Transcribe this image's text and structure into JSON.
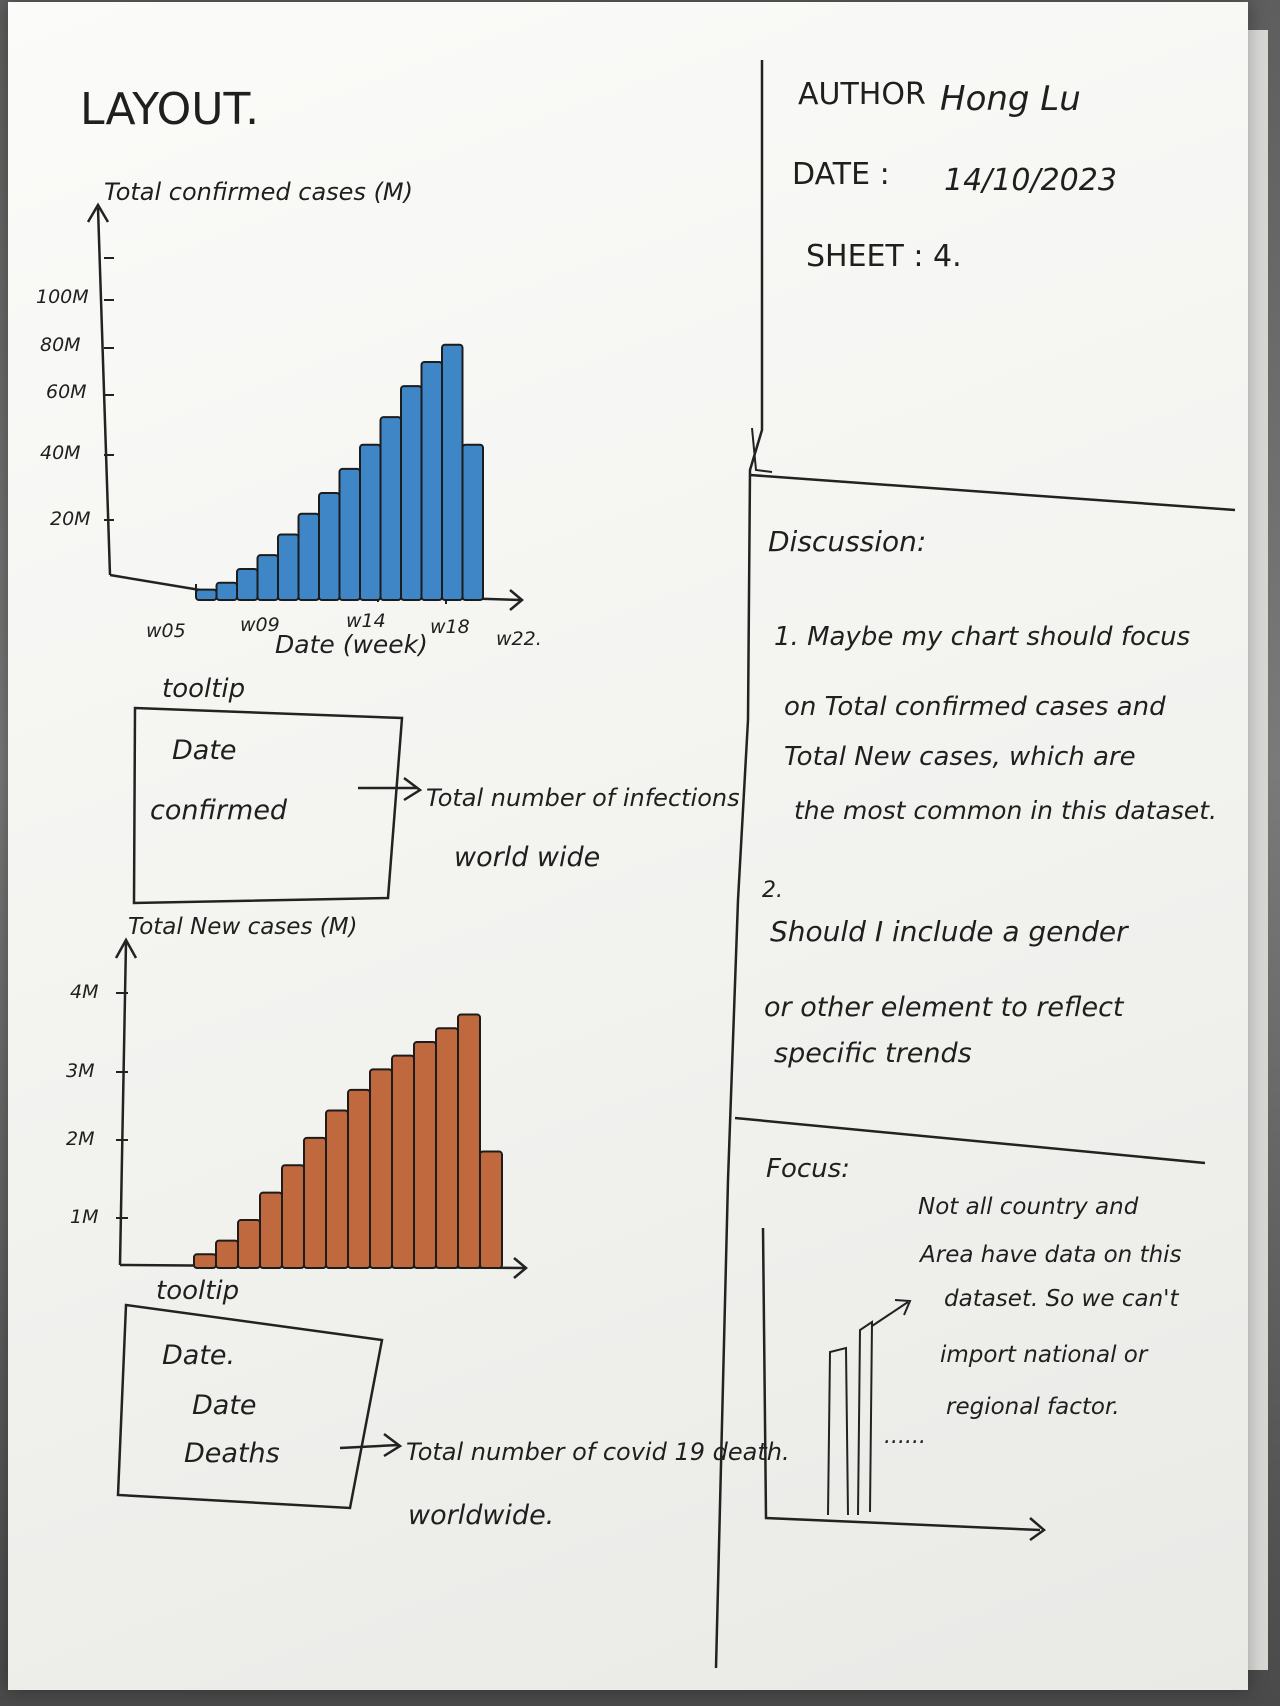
{
  "sheet": {
    "layout_title": "LAYOUT.",
    "author_label": "AUTHOR",
    "author_name": "Hong Lu",
    "date_label": "DATE :",
    "date_value": "14/10/2023",
    "sheet_label": "SHEET : 4."
  },
  "chart1": {
    "ylabel": "Total confirmed cases (M)",
    "xlabel": "Date (week)",
    "y_ticks": [
      "100M",
      "80M",
      "60M",
      "40M",
      "20M"
    ],
    "x_ticks": [
      "w05",
      "w09",
      "w14",
      "w18",
      "w22."
    ],
    "bar_color": "#3f86c6"
  },
  "tooltip1": {
    "heading": "tooltip",
    "line1": "Date",
    "line2": "confirmed",
    "note_line1": "Total number of infections",
    "note_line2": "world wide"
  },
  "chart2": {
    "ylabel": "Total New cases (M)",
    "y_ticks": [
      "4M",
      "3M",
      "2M",
      "1M"
    ],
    "bar_color": "#c0683e"
  },
  "tooltip2": {
    "heading": "tooltip",
    "line1": "Date.",
    "line2": "Date",
    "line3": "Deaths",
    "note_line1": "Total number of covid 19 death.",
    "note_line2": "worldwide."
  },
  "discussion": {
    "heading": "Discussion:",
    "item1_line1": "1. Maybe my chart should focus",
    "item1_line2": "on Total confirmed cases and",
    "item1_line3": "Total New cases, which are",
    "item1_line4": "the most common in this dataset.",
    "item2_num": "2.",
    "item2_line1": "Should I include a gender",
    "item2_line2": "or other element to reflect",
    "item2_line3": "specific trends"
  },
  "focus": {
    "heading": "Focus:",
    "note_line1": "Not all country and",
    "note_line2": "Area have data on this",
    "note_line3": "dataset. So we can't",
    "note_line4": "import national or",
    "note_line5": "regional factor.",
    "dots": "......"
  },
  "chart_data": [
    {
      "type": "bar",
      "ylabel": "Total confirmed cases (M)",
      "xlabel": "Date (week)",
      "x_tick_labels": [
        "w05",
        "w09",
        "w14",
        "w18",
        "w22."
      ],
      "y_tick_labels": [
        "20M",
        "40M",
        "60M",
        "80M",
        "100M"
      ],
      "values": [
        3,
        5,
        9,
        13,
        19,
        25,
        31,
        38,
        45,
        53,
        62,
        69,
        74,
        45
      ],
      "color": "#3f86c6"
    },
    {
      "type": "bar",
      "ylabel": "Total New cases (M)",
      "y_tick_labels": [
        "1M",
        "2M",
        "3M",
        "4M"
      ],
      "values": [
        0.2,
        0.4,
        0.7,
        1.1,
        1.5,
        1.9,
        2.3,
        2.6,
        2.9,
        3.1,
        3.3,
        3.5,
        3.7,
        1.7
      ],
      "color": "#c0683e"
    }
  ]
}
